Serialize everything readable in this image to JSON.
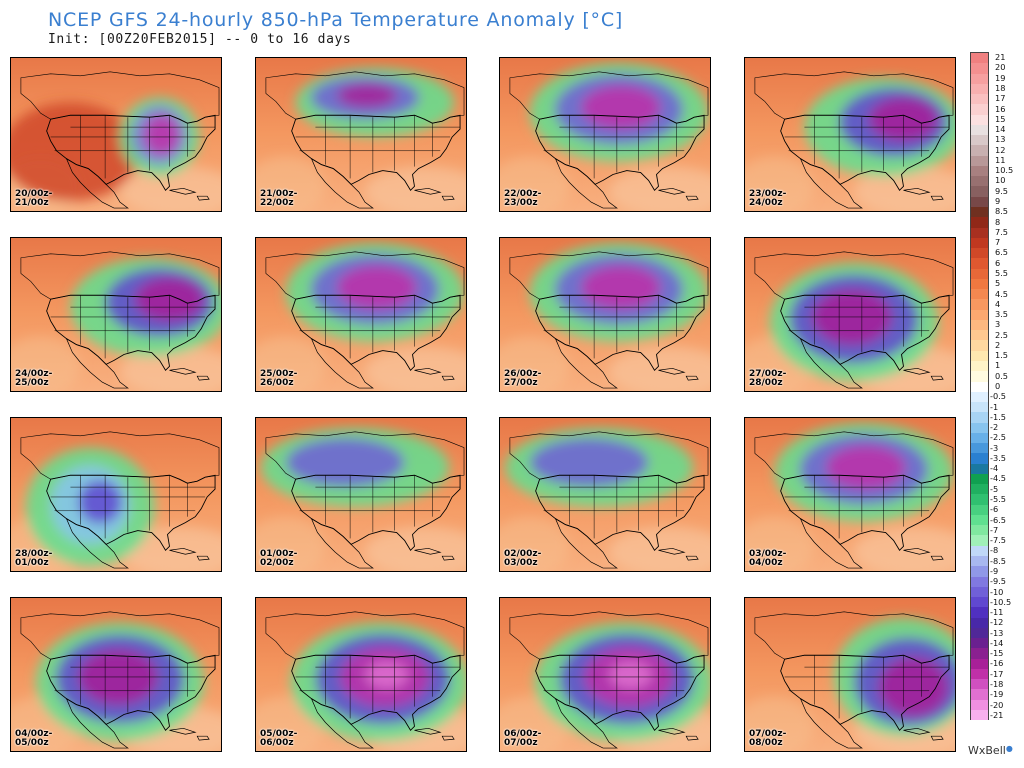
{
  "title": "NCEP GFS 24-hourly 850-hPa Temperature Anomaly [°C]",
  "subtitle": "Init: [00Z20FEB2015] -- 0 to 16 days",
  "brand": "WxBell",
  "panels": [
    {
      "line1": "20/00z-",
      "line2": "21/00z",
      "anomaly": "warm-west cold-east"
    },
    {
      "line1": "21/00z-",
      "line2": "22/00z",
      "anomaly": "cold-north"
    },
    {
      "line1": "22/00z-",
      "line2": "23/00z",
      "anomaly": "cold-north-central"
    },
    {
      "line1": "23/00z-",
      "line2": "24/00z",
      "anomaly": "cold-northeast"
    },
    {
      "line1": "24/00z-",
      "line2": "25/00z",
      "anomaly": "cold-northeast"
    },
    {
      "line1": "25/00z-",
      "line2": "26/00z",
      "anomaly": "cold-north-central"
    },
    {
      "line1": "26/00z-",
      "line2": "27/00z",
      "anomaly": "cold-north-central"
    },
    {
      "line1": "27/00z-",
      "line2": "28/00z",
      "anomaly": "cold-central"
    },
    {
      "line1": "28/00z-",
      "line2": "01/00z",
      "anomaly": "cold-west"
    },
    {
      "line1": "01/00z-",
      "line2": "02/00z",
      "anomaly": "cold-north-west"
    },
    {
      "line1": "02/00z-",
      "line2": "03/00z",
      "anomaly": "cold-north-west"
    },
    {
      "line1": "03/00z-",
      "line2": "04/00z",
      "anomaly": "cold-north-central"
    },
    {
      "line1": "04/00z-",
      "line2": "05/00z",
      "anomaly": "cold-central"
    },
    {
      "line1": "05/00z-",
      "line2": "06/00z",
      "anomaly": "cold-central-east"
    },
    {
      "line1": "06/00z-",
      "line2": "07/00z",
      "anomaly": "cold-central-east"
    },
    {
      "line1": "07/00z-",
      "line2": "08/00z",
      "anomaly": "cold-east"
    }
  ],
  "colorbar": {
    "labels": [
      "21",
      "20",
      "19",
      "18",
      "17",
      "16",
      "15",
      "14",
      "13",
      "12",
      "11",
      "10.5",
      "10",
      "9.5",
      "9",
      "8.5",
      "8",
      "7.5",
      "7",
      "6.5",
      "6",
      "5.5",
      "5",
      "4.5",
      "4",
      "3.5",
      "3",
      "2.5",
      "2",
      "1.5",
      "1",
      "0.5",
      "0",
      "-0.5",
      "-1",
      "-1.5",
      "-2",
      "-2.5",
      "-3",
      "-3.5",
      "-4",
      "-4.5",
      "-5",
      "-5.5",
      "-6",
      "-6.5",
      "-7",
      "-7.5",
      "-8",
      "-8.5",
      "-9",
      "-9.5",
      "-10",
      "-10.5",
      "-11",
      "-12",
      "-13",
      "-14",
      "-15",
      "-16",
      "-17",
      "-18",
      "-19",
      "-20",
      "-21"
    ],
    "colors": [
      "#f08080",
      "#f49090",
      "#f6a0a0",
      "#f8b0b0",
      "#f9c0c0",
      "#fad0d0",
      "#fbe0e0",
      "#e8e0e0",
      "#d8c8c8",
      "#c8b0b0",
      "#b89898",
      "#a88080",
      "#987070",
      "#886060",
      "#784848",
      "#703020",
      "#902818",
      "#a83020",
      "#c03820",
      "#d04828",
      "#e05830",
      "#e86838",
      "#f07840",
      "#f48850",
      "#f89860",
      "#fca870",
      "#fdb880",
      "#fec890",
      "#fed8a0",
      "#fee8b0",
      "#fff4c8",
      "#fffbe0",
      "#ffffff",
      "#e0f0ff",
      "#c8e4fa",
      "#a8d4f4",
      "#88c4ee",
      "#68b0e8",
      "#4898dc",
      "#2a80d0",
      "#1a78a0",
      "#10a050",
      "#20b060",
      "#30c070",
      "#48d080",
      "#60e090",
      "#80e8a0",
      "#a0f0b8",
      "#c0d8f8",
      "#a8b8f0",
      "#9098e8",
      "#8078e0",
      "#7060d8",
      "#6048d0",
      "#5030c0",
      "#4828a8",
      "#502898",
      "#6a2090",
      "#8a2090",
      "#a82098",
      "#c030a8",
      "#d050c0",
      "#e070d0",
      "#f090e0",
      "#f8b0ee"
    ]
  }
}
